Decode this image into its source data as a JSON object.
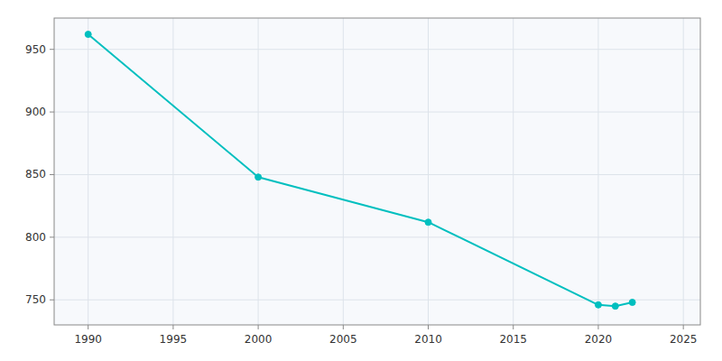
{
  "chart_data": {
    "type": "line",
    "x": [
      1990,
      2000,
      2010,
      2020,
      2021,
      2022
    ],
    "values": [
      962,
      848,
      812,
      746,
      745,
      748
    ],
    "color": "#00BFBF",
    "marker": "circle",
    "xlim": [
      1988,
      2026
    ],
    "ylim": [
      730,
      975
    ],
    "xticks": [
      1990,
      1995,
      2000,
      2005,
      2010,
      2015,
      2020,
      2025
    ],
    "yticks": [
      750,
      800,
      850,
      900,
      950
    ],
    "grid": true
  }
}
